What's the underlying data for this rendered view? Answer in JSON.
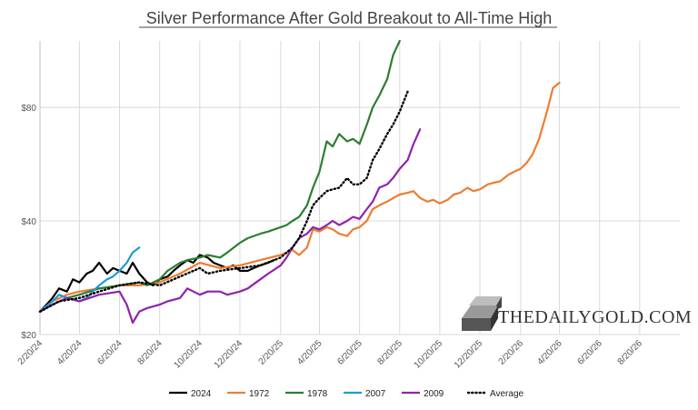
{
  "chart_data": {
    "type": "line",
    "title": "Silver Performance After Gold Breakout to All-Time High",
    "xlabel": "",
    "ylabel": "",
    "x_tick_labels": [
      "2/20/24",
      "4/20/24",
      "6/20/24",
      "8/20/24",
      "10/20/24",
      "12/20/24",
      "2/20/25",
      "4/20/25",
      "6/20/25",
      "8/20/25",
      "10/20/25",
      "12/20/25",
      "2/20/26",
      "4/20/26",
      "6/20/26",
      "8/20/26"
    ],
    "x_range": [
      "2/20/24",
      "10/20/26"
    ],
    "y_tick_labels": [
      "$20",
      "$40",
      "$80"
    ],
    "y_tick_values": [
      20,
      40,
      80
    ],
    "y_scale": "log",
    "ylim": [
      20,
      120
    ],
    "grid": "vertical",
    "legend_position": "bottom",
    "watermark": "THEDAILYGOLD.COM",
    "series": [
      {
        "name": "2024",
        "color": "#000000",
        "style": "solid",
        "points": [
          [
            "2/20/24",
            23
          ],
          [
            "3/1/24",
            24
          ],
          [
            "3/10/24",
            25
          ],
          [
            "3/20/24",
            26.5
          ],
          [
            "4/1/24",
            26
          ],
          [
            "4/10/24",
            28
          ],
          [
            "4/20/24",
            27.5
          ],
          [
            "5/1/24",
            29
          ],
          [
            "5/10/24",
            29.5
          ],
          [
            "5/20/24",
            31
          ],
          [
            "6/1/24",
            29
          ],
          [
            "6/10/24",
            30
          ],
          [
            "6/20/24",
            29.5
          ],
          [
            "7/1/24",
            29
          ],
          [
            "7/10/24",
            31
          ],
          [
            "7/20/24",
            29
          ],
          [
            "8/1/24",
            27.5
          ],
          [
            "8/10/24",
            27
          ],
          [
            "8/20/24",
            28
          ],
          [
            "9/1/24",
            28.5
          ],
          [
            "9/10/24",
            29.5
          ],
          [
            "9/20/24",
            30.5
          ],
          [
            "10/1/24",
            31.5
          ],
          [
            "10/10/24",
            31
          ],
          [
            "10/20/24",
            32.5
          ],
          [
            "11/1/24",
            32
          ],
          [
            "11/10/24",
            31
          ],
          [
            "11/20/24",
            30.5
          ],
          [
            "12/1/24",
            30
          ],
          [
            "12/10/24",
            30.5
          ],
          [
            "12/20/24",
            29.5
          ],
          [
            "1/1/25",
            29.5
          ],
          [
            "1/10/25",
            30
          ],
          [
            "1/20/25",
            30.5
          ],
          [
            "2/1/25",
            31
          ],
          [
            "2/10/25",
            31.5
          ]
        ]
      },
      {
        "name": "1972",
        "color": "#ED7D31",
        "style": "solid",
        "points": [
          [
            "2/20/24",
            23
          ],
          [
            "3/10/24",
            24.5
          ],
          [
            "4/1/24",
            25.5
          ],
          [
            "4/20/24",
            26
          ],
          [
            "5/20/24",
            26.5
          ],
          [
            "6/20/24",
            27
          ],
          [
            "7/20/24",
            27
          ],
          [
            "8/20/24",
            27.5
          ],
          [
            "9/20/24",
            29
          ],
          [
            "10/20/24",
            31
          ],
          [
            "11/20/24",
            30
          ],
          [
            "12/20/24",
            30.5
          ],
          [
            "1/20/25",
            31.5
          ],
          [
            "2/20/25",
            32.5
          ],
          [
            "3/10/25",
            33.5
          ],
          [
            "3/20/25",
            32.5
          ],
          [
            "4/1/25",
            34
          ],
          [
            "4/10/25",
            38
          ],
          [
            "4/20/25",
            37.5
          ],
          [
            "5/1/25",
            38.5
          ],
          [
            "5/10/25",
            38
          ],
          [
            "5/20/25",
            37
          ],
          [
            "6/1/25",
            36.5
          ],
          [
            "6/10/25",
            38
          ],
          [
            "6/20/25",
            38.5
          ],
          [
            "7/1/25",
            40
          ],
          [
            "7/10/25",
            43
          ],
          [
            "7/20/25",
            44
          ],
          [
            "8/1/25",
            45
          ],
          [
            "8/10/25",
            46
          ],
          [
            "8/20/25",
            47
          ],
          [
            "9/1/25",
            47.5
          ],
          [
            "9/10/25",
            48
          ],
          [
            "9/20/25",
            46
          ],
          [
            "10/1/25",
            45
          ],
          [
            "10/10/25",
            45.5
          ],
          [
            "10/20/25",
            44.5
          ],
          [
            "11/1/25",
            45.5
          ],
          [
            "11/10/25",
            47
          ],
          [
            "11/20/25",
            47.5
          ],
          [
            "12/1/25",
            49
          ],
          [
            "12/10/25",
            48
          ],
          [
            "12/20/25",
            48.5
          ],
          [
            "1/1/26",
            50
          ],
          [
            "1/10/26",
            50.5
          ],
          [
            "1/20/26",
            51
          ],
          [
            "2/1/26",
            53
          ],
          [
            "2/10/26",
            54
          ],
          [
            "2/20/26",
            55
          ],
          [
            "3/1/26",
            57
          ],
          [
            "3/10/26",
            60
          ],
          [
            "3/20/26",
            66
          ],
          [
            "4/1/26",
            78
          ],
          [
            "4/10/26",
            90
          ],
          [
            "4/20/26",
            93
          ]
        ]
      },
      {
        "name": "1978",
        "color": "#2E7D32",
        "style": "solid",
        "points": [
          [
            "2/20/24",
            23
          ],
          [
            "3/10/24",
            24
          ],
          [
            "4/1/24",
            25
          ],
          [
            "4/20/24",
            25.5
          ],
          [
            "5/20/24",
            26.5
          ],
          [
            "6/20/24",
            27
          ],
          [
            "7/20/24",
            27.5
          ],
          [
            "8/1/24",
            27
          ],
          [
            "8/20/24",
            28
          ],
          [
            "9/1/24",
            29.5
          ],
          [
            "9/20/24",
            31
          ],
          [
            "10/1/24",
            31.5
          ],
          [
            "10/20/24",
            32
          ],
          [
            "11/1/24",
            32.5
          ],
          [
            "11/20/24",
            32
          ],
          [
            "12/1/24",
            33
          ],
          [
            "12/20/24",
            35
          ],
          [
            "1/1/25",
            36
          ],
          [
            "1/20/25",
            37
          ],
          [
            "2/1/25",
            37.5
          ],
          [
            "2/20/25",
            38.5
          ],
          [
            "3/1/25",
            39
          ],
          [
            "3/10/25",
            40
          ],
          [
            "3/20/25",
            41
          ],
          [
            "4/1/25",
            44
          ],
          [
            "4/10/25",
            49
          ],
          [
            "4/20/25",
            54
          ],
          [
            "5/1/25",
            65
          ],
          [
            "5/10/25",
            63
          ],
          [
            "5/20/25",
            68
          ],
          [
            "6/1/25",
            65
          ],
          [
            "6/10/25",
            66
          ],
          [
            "6/20/25",
            64
          ],
          [
            "7/1/25",
            72
          ],
          [
            "7/10/25",
            80
          ],
          [
            "7/20/25",
            86
          ],
          [
            "8/1/25",
            95
          ],
          [
            "8/10/25",
            110
          ],
          [
            "8/20/25",
            130
          ]
        ]
      },
      {
        "name": "2007",
        "color": "#1E9BD7",
        "style": "solid",
        "points": [
          [
            "2/20/24",
            23
          ],
          [
            "3/10/24",
            24.5
          ],
          [
            "3/20/24",
            25.5
          ],
          [
            "4/1/24",
            25
          ],
          [
            "4/20/24",
            24.5
          ],
          [
            "5/1/24",
            25
          ],
          [
            "5/10/24",
            26
          ],
          [
            "5/20/24",
            27
          ],
          [
            "6/1/24",
            28
          ],
          [
            "6/10/24",
            28.5
          ],
          [
            "6/20/24",
            29.5
          ],
          [
            "7/1/24",
            31
          ],
          [
            "7/10/24",
            33
          ],
          [
            "7/20/24",
            34
          ]
        ]
      },
      {
        "name": "2009",
        "color": "#8E24AA",
        "style": "solid",
        "points": [
          [
            "2/20/24",
            23
          ],
          [
            "3/10/24",
            24
          ],
          [
            "4/1/24",
            25
          ],
          [
            "4/20/24",
            24.5
          ],
          [
            "5/20/24",
            25.5
          ],
          [
            "6/20/24",
            26
          ],
          [
            "7/1/24",
            24
          ],
          [
            "7/10/24",
            21.5
          ],
          [
            "7/20/24",
            23
          ],
          [
            "8/1/24",
            23.5
          ],
          [
            "8/20/24",
            24
          ],
          [
            "9/1/24",
            24.5
          ],
          [
            "9/20/24",
            25
          ],
          [
            "10/1/24",
            26.5
          ],
          [
            "10/20/24",
            25.5
          ],
          [
            "11/1/24",
            26
          ],
          [
            "11/20/24",
            26
          ],
          [
            "12/1/24",
            25.5
          ],
          [
            "12/20/24",
            26
          ],
          [
            "1/1/25",
            26.5
          ],
          [
            "1/20/25",
            28
          ],
          [
            "2/1/25",
            29
          ],
          [
            "2/20/25",
            30.5
          ],
          [
            "3/1/25",
            32
          ],
          [
            "3/10/25",
            34
          ],
          [
            "3/20/25",
            36
          ],
          [
            "4/1/25",
            37
          ],
          [
            "4/10/25",
            38.5
          ],
          [
            "4/20/25",
            38
          ],
          [
            "5/1/25",
            39
          ],
          [
            "5/10/25",
            40
          ],
          [
            "5/20/25",
            39
          ],
          [
            "6/1/25",
            40
          ],
          [
            "6/10/25",
            41
          ],
          [
            "6/20/25",
            40.5
          ],
          [
            "7/1/25",
            43
          ],
          [
            "7/10/25",
            45
          ],
          [
            "7/20/25",
            49
          ],
          [
            "8/1/25",
            50
          ],
          [
            "8/10/25",
            52
          ],
          [
            "8/20/25",
            55
          ],
          [
            "9/1/25",
            58
          ],
          [
            "9/10/25",
            64
          ],
          [
            "9/20/25",
            70
          ]
        ]
      },
      {
        "name": "Average",
        "color": "#000000",
        "style": "dotted",
        "points": [
          [
            "2/20/24",
            23
          ],
          [
            "3/20/24",
            24.5
          ],
          [
            "4/20/24",
            25
          ],
          [
            "5/20/24",
            26
          ],
          [
            "6/20/24",
            27
          ],
          [
            "7/20/24",
            27.5
          ],
          [
            "8/20/24",
            27
          ],
          [
            "9/20/24",
            28.5
          ],
          [
            "10/20/24",
            30
          ],
          [
            "11/1/24",
            29
          ],
          [
            "11/20/24",
            29.5
          ],
          [
            "12/20/24",
            30
          ],
          [
            "1/20/25",
            30.5
          ],
          [
            "2/20/25",
            32
          ],
          [
            "3/10/25",
            34
          ],
          [
            "3/20/25",
            36
          ],
          [
            "4/1/25",
            40
          ],
          [
            "4/10/25",
            44
          ],
          [
            "4/20/25",
            46
          ],
          [
            "5/1/25",
            48
          ],
          [
            "5/10/25",
            48.5
          ],
          [
            "5/20/25",
            49
          ],
          [
            "6/1/25",
            52
          ],
          [
            "6/10/25",
            50
          ],
          [
            "6/20/25",
            50
          ],
          [
            "7/1/25",
            52
          ],
          [
            "7/10/25",
            58
          ],
          [
            "7/20/25",
            62
          ],
          [
            "8/1/25",
            68
          ],
          [
            "8/10/25",
            72
          ],
          [
            "8/20/25",
            78
          ],
          [
            "9/1/25",
            88
          ]
        ]
      }
    ]
  }
}
